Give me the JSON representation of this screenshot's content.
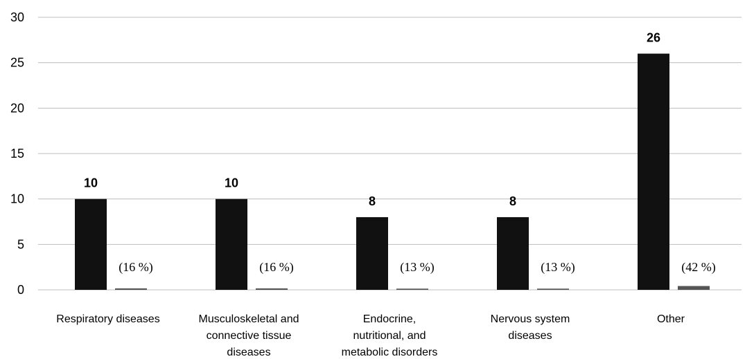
{
  "chart_data": {
    "type": "bar",
    "categories": [
      [
        "Respiratory diseases"
      ],
      [
        "Musculoskeletal and",
        "connective tissue",
        "diseases"
      ],
      [
        "Endocrine,",
        "nutritional, and",
        "metabolic disorders"
      ],
      [
        "Nervous system",
        "diseases"
      ],
      [
        "Other"
      ]
    ],
    "series": [
      {
        "values": [
          10,
          10,
          8,
          8,
          26
        ],
        "color": "#111111"
      },
      {
        "values": [
          0.16,
          0.16,
          0.13,
          0.13,
          0.42
        ],
        "color": "#555555"
      }
    ],
    "value_labels": [
      "10",
      "10",
      "8",
      "8",
      "26"
    ],
    "percent_labels": [
      "(16 %)",
      "(16 %)",
      "(13 %)",
      "(13 %)",
      "(42 %)"
    ],
    "yticks": [
      "0",
      "5",
      "10",
      "15",
      "20",
      "25",
      "30"
    ],
    "ylim": [
      0,
      30
    ],
    "grid": true,
    "gridline_color": "#bdbdbd"
  }
}
